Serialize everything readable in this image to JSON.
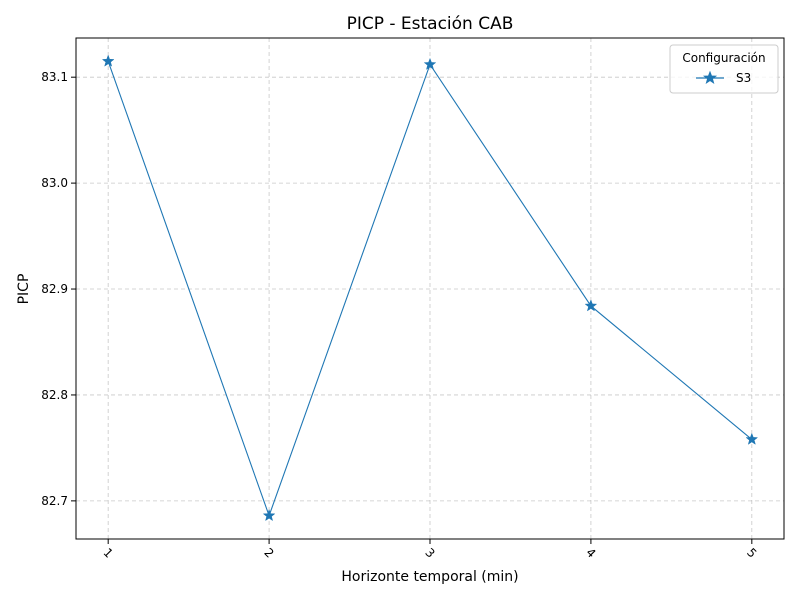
{
  "chart_data": {
    "type": "line",
    "title": "PICP - Estación CAB",
    "xlabel": "Horizonte temporal (min)",
    "ylabel": "PICP",
    "x": [
      1,
      2,
      3,
      4,
      5
    ],
    "x_tick_labels": [
      "1",
      "2",
      "3",
      "4",
      "5"
    ],
    "y_ticks": [
      82.7,
      82.8,
      82.9,
      83.0,
      83.1
    ],
    "y_tick_labels": [
      "82.7",
      "82.8",
      "82.9",
      "83.0",
      "83.1"
    ],
    "ylim": [
      82.664,
      83.137
    ],
    "xlim": [
      0.8,
      5.2
    ],
    "grid": true,
    "legend": {
      "title": "Configuración",
      "placement": "top-right"
    },
    "series": [
      {
        "name": "S3",
        "values": [
          83.115,
          82.686,
          83.112,
          82.884,
          82.758
        ],
        "color": "#1f77b4",
        "marker": "star"
      }
    ]
  }
}
